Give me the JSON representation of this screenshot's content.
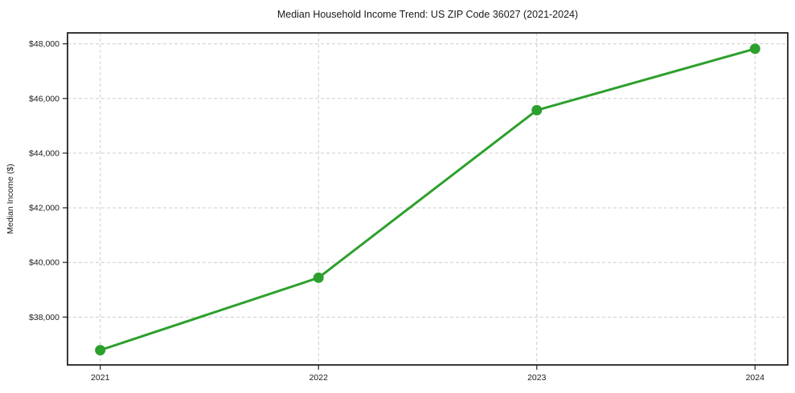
{
  "chart_data": {
    "type": "line",
    "title": "Median Household Income Trend: US ZIP Code 36027 (2021-2024)",
    "xlabel": "",
    "ylabel": "Median Income ($)",
    "x": [
      2021,
      2022,
      2023,
      2024
    ],
    "series": [
      {
        "name": "Median Household Income",
        "values": [
          36790,
          39440,
          45570,
          47820
        ]
      }
    ],
    "xticks": {
      "values": [
        2021,
        2022,
        2023,
        2024
      ],
      "labels": [
        "2021",
        "2022",
        "2023",
        "2024"
      ]
    },
    "yticks": {
      "values": [
        38000,
        40000,
        42000,
        44000,
        46000,
        48000
      ],
      "labels": [
        "$38,000",
        "$40,000",
        "$42,000",
        "$44,000",
        "$46,000",
        "$48,000"
      ]
    },
    "xlim": [
      2020.85,
      2024.15
    ],
    "ylim": [
      36250,
      48400
    ],
    "grid": true,
    "grid_style": "dashed",
    "legend": "none",
    "marker": "circle",
    "colors": {
      "line": "#2ca02c",
      "marker": "#2ca02c",
      "grid": "#cdcdcd",
      "spine": "#222222",
      "text": "#1a1a1a",
      "background": "#ffffff"
    }
  }
}
